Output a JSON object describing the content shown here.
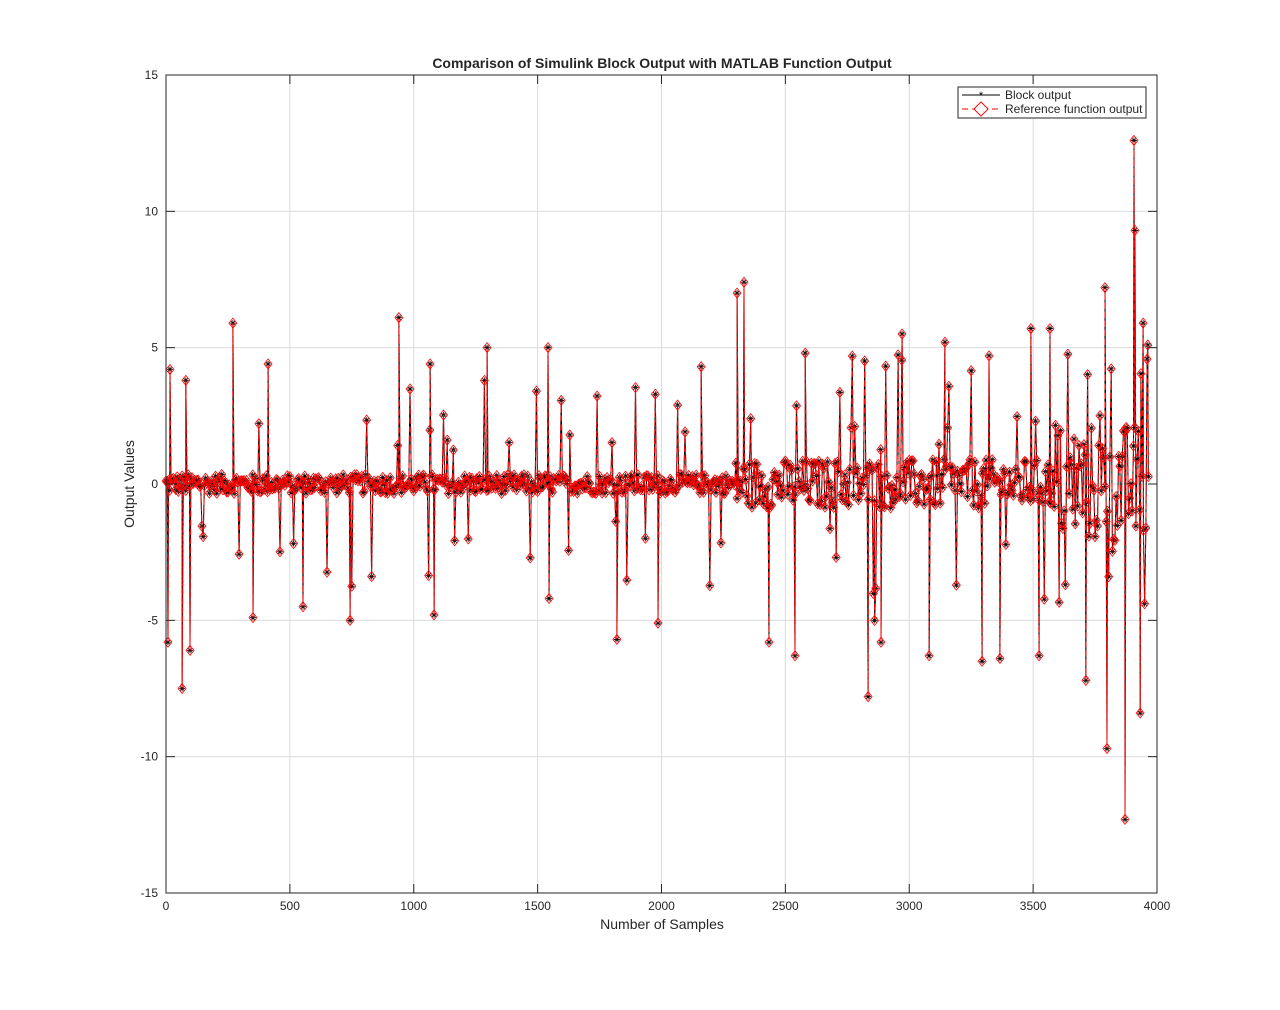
{
  "chart_data": {
    "type": "line",
    "title": "Comparison of Simulink Block Output with MATLAB Function Output",
    "xlabel": "Number of Samples",
    "ylabel": "Output Values",
    "xlim": [
      0,
      4000
    ],
    "ylim": [
      -15,
      15
    ],
    "xticks": [
      "0",
      "500",
      "1000",
      "1500",
      "2000",
      "2500",
      "3000",
      "3500",
      "4000"
    ],
    "yticks": [
      "-15",
      "-10",
      "-5",
      "0",
      "5",
      "10",
      "15"
    ],
    "grid": true,
    "legend_position": "top-right",
    "series": [
      {
        "name": "Block output",
        "color": "#000000",
        "line": "solid",
        "marker": "asterisk"
      },
      {
        "name": "Reference function output",
        "color": "#ff0000",
        "line": "dashed",
        "marker": "diamond"
      }
    ],
    "notable_points": {
      "x": [
        8,
        16,
        65,
        80,
        97,
        270,
        351,
        412,
        553,
        743,
        940,
        1066,
        1082,
        1296,
        1542,
        1546,
        1820,
        1986,
        2160,
        2305,
        2333,
        2434,
        2539,
        2580,
        2834,
        2860,
        2886,
        2971,
        3080,
        3144,
        3294,
        3322,
        3366,
        3491,
        3524,
        3568,
        3713,
        3790,
        3798,
        3871,
        3907,
        3911,
        3932,
        3944,
        3963
      ],
      "y": [
        -5.8,
        4.2,
        -7.5,
        3.8,
        -6.1,
        5.9,
        -4.9,
        4.4,
        -4.5,
        -5.0,
        6.1,
        4.4,
        -4.8,
        5.0,
        5.0,
        -4.2,
        -5.7,
        -5.1,
        4.3,
        7.0,
        7.4,
        -5.8,
        -6.3,
        4.8,
        -7.8,
        -5.0,
        -5.8,
        5.5,
        -6.3,
        5.2,
        -6.5,
        4.7,
        -6.4,
        5.7,
        -6.3,
        5.7,
        -7.2,
        7.2,
        -9.7,
        -12.3,
        12.6,
        9.3,
        -8.4,
        5.9,
        5.1
      ]
    }
  }
}
